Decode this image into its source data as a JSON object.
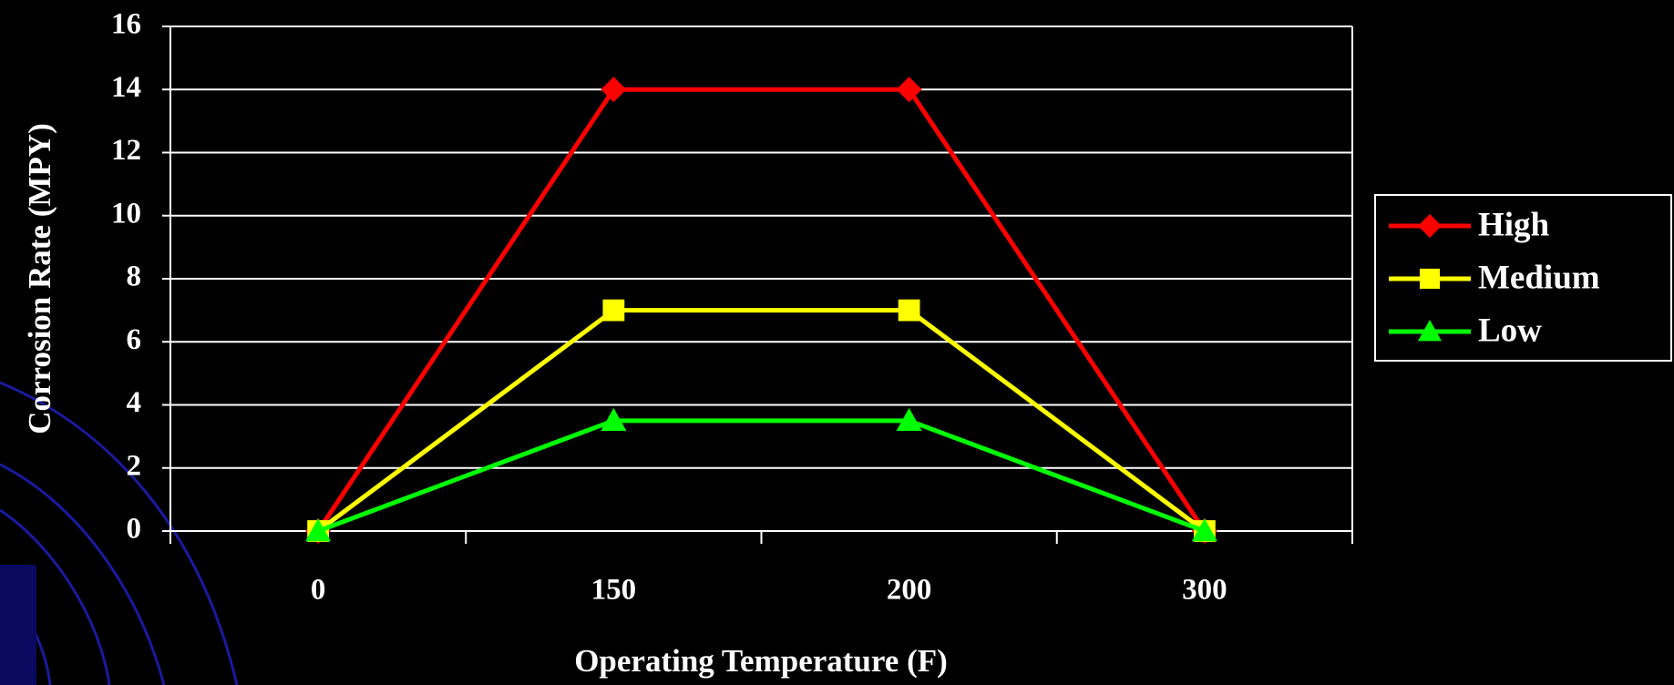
{
  "chart_data": {
    "type": "line",
    "x_label": "Operating Temperature (F)",
    "y_label": "Corrosion Rate (MPY)",
    "categories": [
      "0",
      "150",
      "200",
      "300"
    ],
    "series": [
      {
        "name": "High",
        "color": "#ff0000",
        "marker": "diamond",
        "values": [
          0,
          14,
          14,
          0
        ]
      },
      {
        "name": "Medium",
        "color": "#ffff00",
        "marker": "square",
        "values": [
          0,
          7,
          7,
          0
        ]
      },
      {
        "name": "Low",
        "color": "#00ff00",
        "marker": "triangle",
        "values": [
          0,
          3.5,
          3.5,
          0
        ]
      }
    ],
    "ylim": [
      0,
      16
    ],
    "yticks": [
      0,
      2,
      4,
      6,
      8,
      10,
      12,
      14,
      16
    ],
    "grid": true,
    "legend": "right"
  }
}
